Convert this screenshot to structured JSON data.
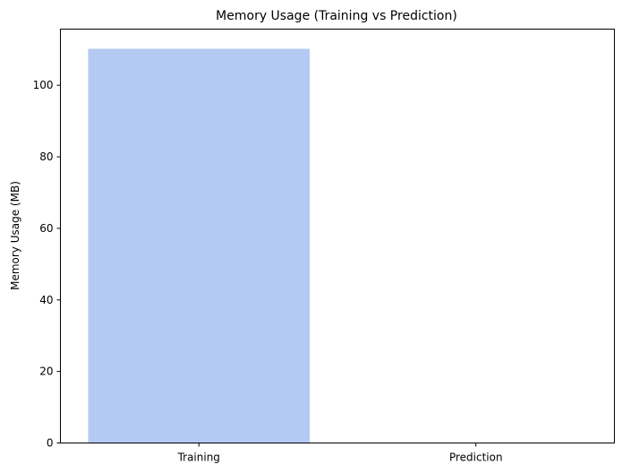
{
  "chart_data": {
    "type": "bar",
    "title": "Memory Usage (Training vs Prediction)",
    "xlabel": "",
    "ylabel": "Memory Usage (MB)",
    "categories": [
      "Training",
      "Prediction"
    ],
    "values": [
      110.2,
      0.1
    ],
    "ylim": [
      0,
      115.7
    ],
    "yticks": [
      0,
      20,
      40,
      60,
      80,
      100
    ],
    "bar_colors": [
      "#b5caf2",
      "#b5caf2"
    ],
    "grid": false,
    "legend": "none"
  }
}
